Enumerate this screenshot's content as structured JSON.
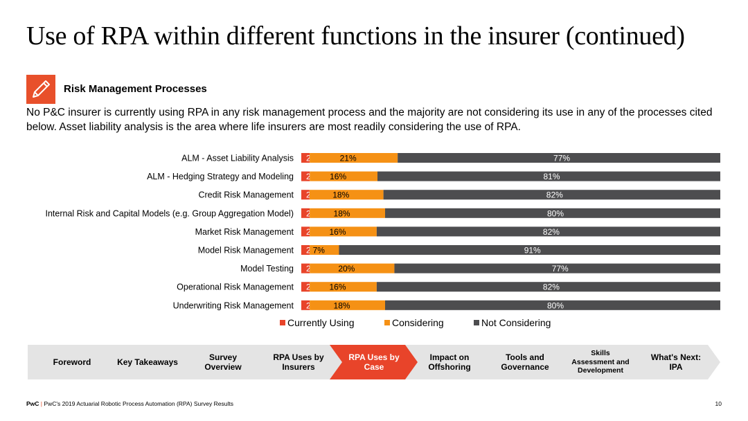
{
  "title": "Use of RPA within different functions in the insurer (continued)",
  "section": {
    "icon": "pencil-icon",
    "title": "Risk Management Processes"
  },
  "intro": "No P&C insurer is currently using RPA in any risk management process and the majority are not considering its use in any of the processes cited below. Asset liability analysis is the area where life insurers are most readily considering the use of RPA.",
  "chart_data": {
    "type": "bar",
    "orientation": "horizontal",
    "stacked": true,
    "categories": [
      "ALM - Asset Liability Analysis",
      "ALM - Hedging Strategy and Modeling",
      "Credit Risk Management",
      "Internal Risk and Capital Models (e.g. Group Aggregation Model)",
      "Market Risk Management",
      "Model Risk Management",
      "Model Testing",
      "Operational Risk Management",
      "Underwriting Risk Management"
    ],
    "series": [
      {
        "name": "Currently Using",
        "color": "#e8442a",
        "values": [
          2,
          2,
          2,
          2,
          2,
          2,
          2,
          2,
          2
        ],
        "labels": [
          "2%",
          "2%",
          "2%",
          "2%",
          "2%",
          "2%",
          "2%",
          "2%",
          "2%"
        ]
      },
      {
        "name": "Considering",
        "color": "#f59115",
        "values": [
          21,
          16,
          18,
          18,
          16,
          7,
          20,
          16,
          18
        ],
        "labels": [
          "21%",
          "16%",
          "18%",
          "18%",
          "16%",
          "7%",
          "20%",
          "16%",
          "18%"
        ]
      },
      {
        "name": "Not Considering",
        "color": "#4d4d4f",
        "values": [
          77,
          81,
          82,
          80,
          82,
          91,
          77,
          82,
          80
        ],
        "labels": [
          "77%",
          "81%",
          "82%",
          "80%",
          "82%",
          "91%",
          "77%",
          "82%",
          "80%"
        ]
      }
    ],
    "legend_position": "bottom",
    "grid": false
  },
  "legend": [
    "Currently Using",
    "Considering",
    "Not Considering"
  ],
  "nav": [
    {
      "label": "Foreword",
      "active": false
    },
    {
      "label": "Key Takeaways",
      "active": false
    },
    {
      "label": "Survey Overview",
      "active": false
    },
    {
      "label": "RPA Uses by Insurers",
      "active": false
    },
    {
      "label": "RPA Uses by Case",
      "active": true
    },
    {
      "label": "Impact on Offshoring",
      "active": false
    },
    {
      "label": "Tools and Governance",
      "active": false
    },
    {
      "label": "Skills Assessment and Development",
      "active": false
    },
    {
      "label": "What's Next: IPA",
      "active": false
    }
  ],
  "footer": {
    "brand": "PwC",
    "separator": "|",
    "text": "PwC's 2019 Actuarial Robotic Process Automation (RPA) Survey Results",
    "page": "10"
  },
  "colors": {
    "accent": "#e8442a",
    "orange": "#f59115",
    "dark_grey": "#4d4d4f",
    "nav_grey": "#e4e4e4"
  }
}
